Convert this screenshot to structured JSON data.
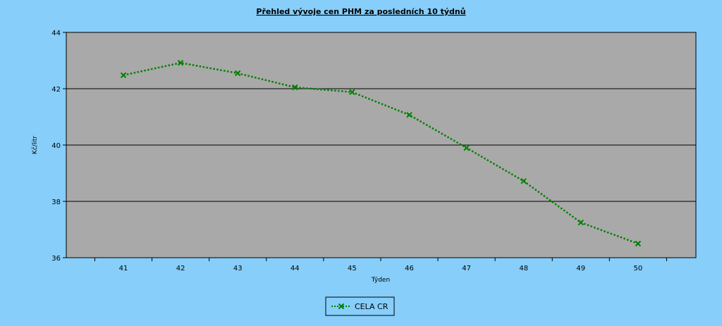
{
  "chart_data": {
    "type": "line",
    "title": "Přehled vývoje cen PHM za posledních 10 týdnů",
    "xlabel": "Týden",
    "ylabel": "Kč/litr",
    "categories": [
      "41",
      "42",
      "43",
      "44",
      "45",
      "46",
      "47",
      "48",
      "49",
      "50"
    ],
    "ylim": [
      36,
      44
    ],
    "yticks": [
      36,
      38,
      40,
      42,
      44
    ],
    "grid": true,
    "legend_position": "bottom",
    "series": [
      {
        "name": "CELA CR",
        "color": "#008000",
        "marker": "x",
        "line_style": "dotted",
        "values": [
          42.48,
          42.92,
          42.55,
          42.05,
          41.88,
          41.07,
          39.9,
          38.72,
          37.25,
          36.5
        ]
      }
    ],
    "colors": {
      "background": "#87cefa",
      "plot_background": "#a9a9a9"
    }
  }
}
